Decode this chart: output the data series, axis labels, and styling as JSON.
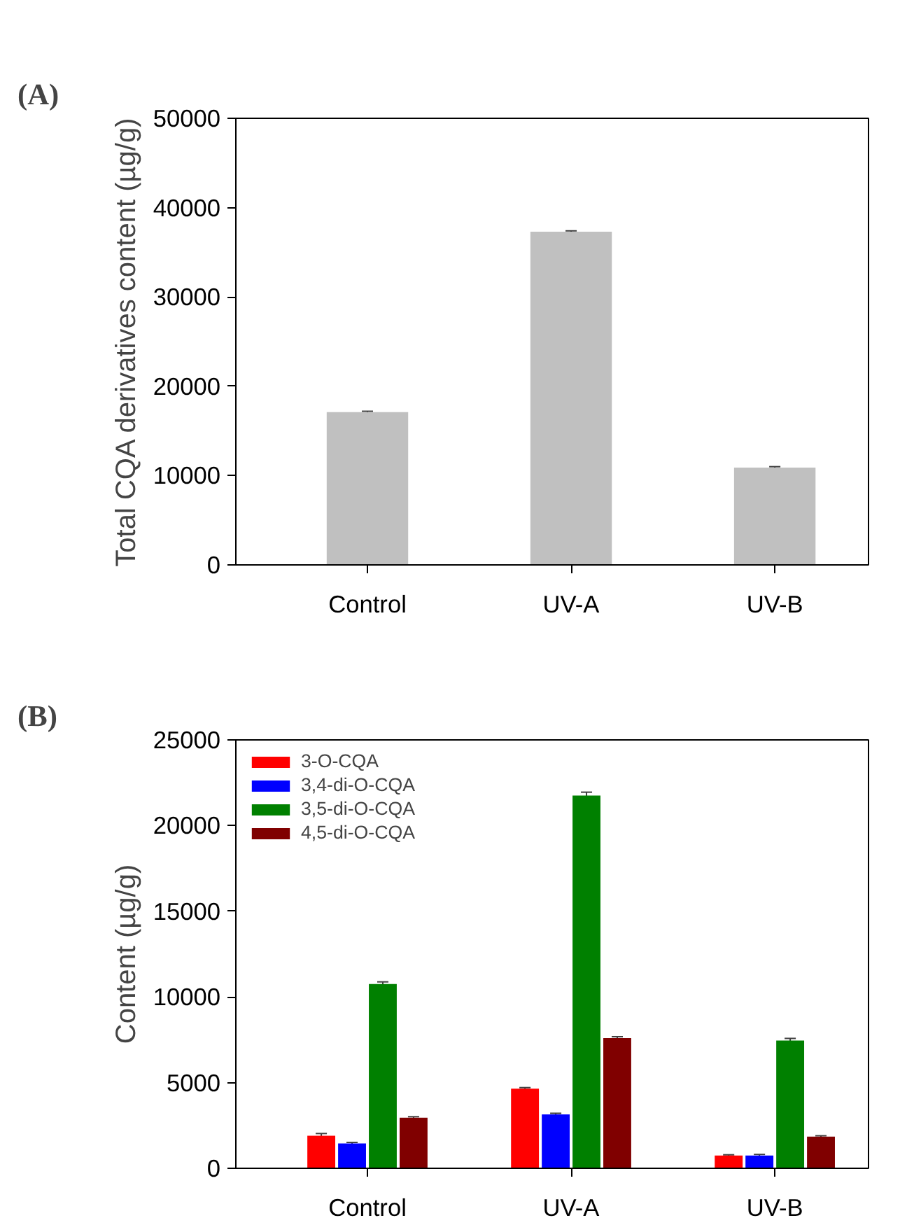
{
  "chart_data": [
    {
      "type": "bar",
      "title": "(A)",
      "ylabel": "Total CQA derivatives content (µg/g)",
      "categories": [
        "Control",
        "UV-A",
        "UV-B"
      ],
      "series": [
        {
          "color": "#c0c0c0",
          "values": [
            17100,
            37300,
            10900
          ],
          "errors": [
            100,
            100,
            100
          ]
        }
      ],
      "ylim": [
        0,
        50000
      ],
      "yticks": [
        0,
        10000,
        20000,
        30000,
        40000,
        50000
      ],
      "grid": false,
      "legend": false
    },
    {
      "type": "bar",
      "title": "(B)",
      "ylabel": "Content (µg/g)",
      "categories": [
        "Control",
        "UV-A",
        "UV-B"
      ],
      "series": [
        {
          "name": "3-O-CQA",
          "color": "#ff0000",
          "values": [
            1900,
            4650,
            750
          ],
          "errors": [
            130,
            60,
            40
          ]
        },
        {
          "name": "3,4-di-O-CQA",
          "color": "#0000ff",
          "values": [
            1450,
            3150,
            750
          ],
          "errors": [
            60,
            60,
            60
          ]
        },
        {
          "name": "3,5-di-O-CQA",
          "color": "#008000",
          "values": [
            10750,
            21750,
            7450
          ],
          "errors": [
            130,
            200,
            130
          ]
        },
        {
          "name": "4,5-di-O-CQA",
          "color": "#800000",
          "values": [
            2950,
            7600,
            1850
          ],
          "errors": [
            60,
            80,
            50
          ]
        }
      ],
      "ylim": [
        0,
        25000
      ],
      "yticks": [
        0,
        5000,
        10000,
        15000,
        20000,
        25000
      ],
      "grid": false,
      "legend": "top left"
    }
  ]
}
